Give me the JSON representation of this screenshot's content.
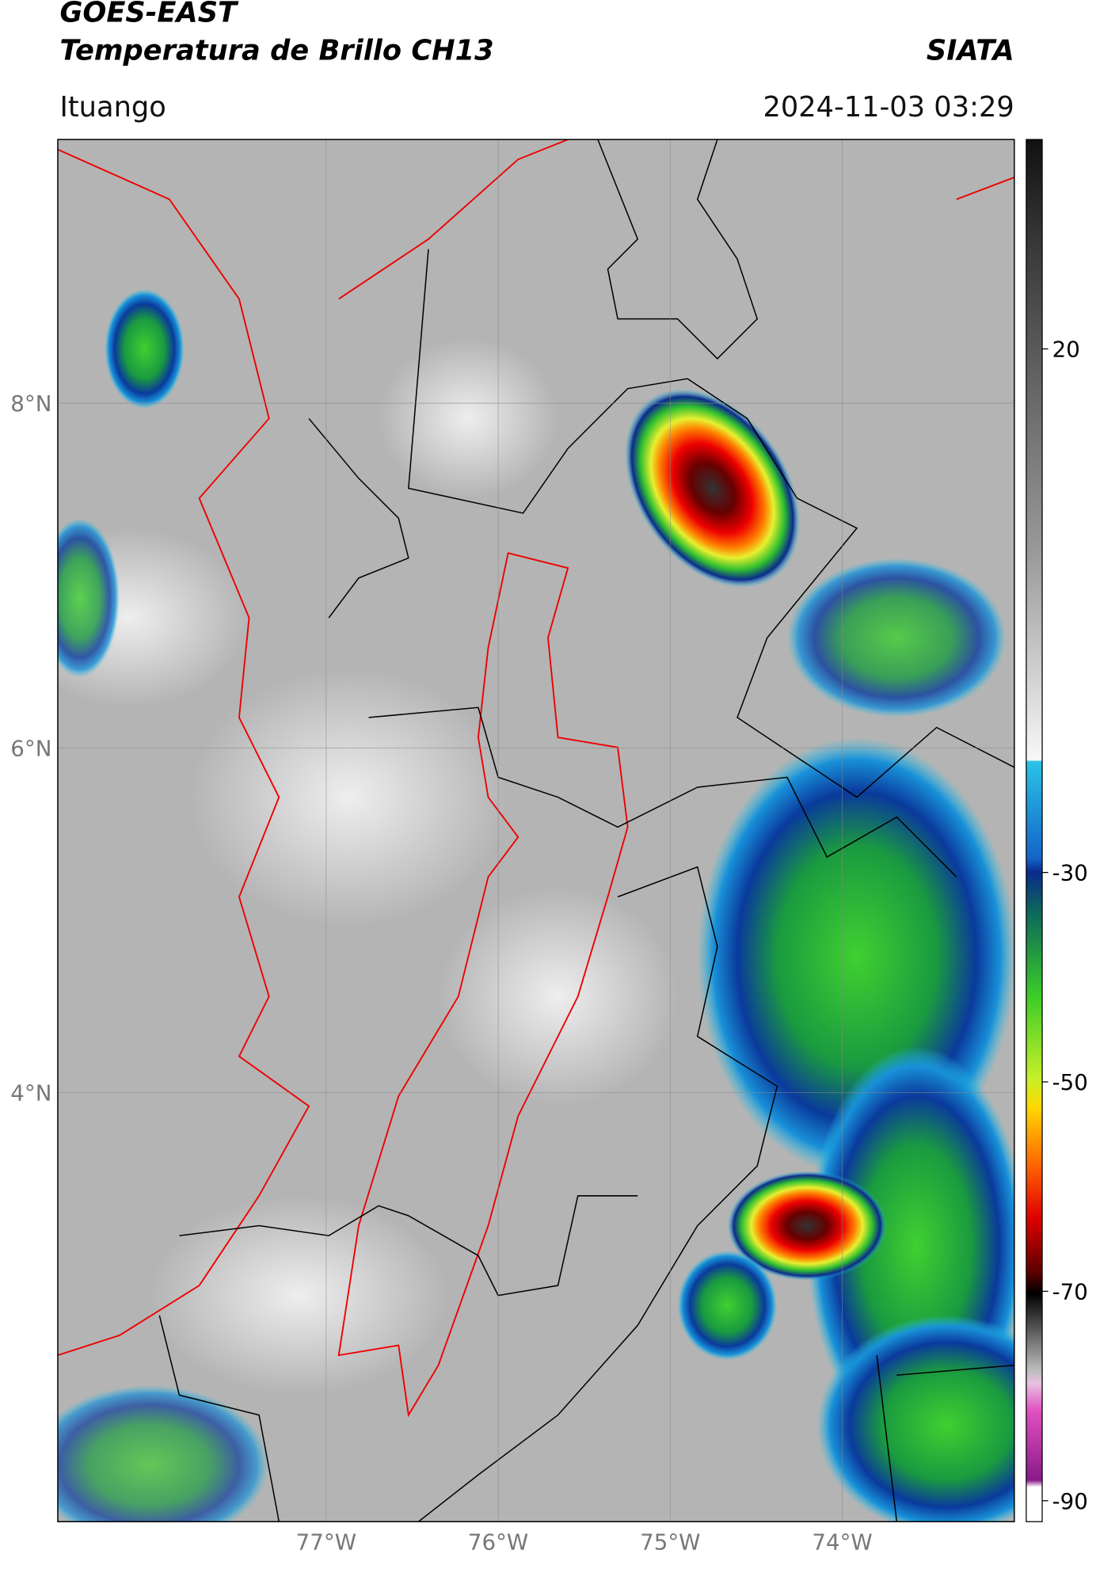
{
  "header": {
    "satellite": "GOES-EAST",
    "product": "Temperatura de Brillo CH13",
    "agency": "SIATA",
    "location": "Ituango",
    "datetime": "2024-11-03 03:29"
  },
  "map": {
    "lon_range": [
      -78.56,
      -73.0
    ],
    "lat_range": [
      1.51,
      9.53
    ],
    "lon_ticks": [
      {
        "value": -77,
        "label": "77°W"
      },
      {
        "value": -76,
        "label": "76°W"
      },
      {
        "value": -75,
        "label": "75°W"
      },
      {
        "value": -74,
        "label": "74°W"
      }
    ],
    "lat_ticks": [
      {
        "value": 8,
        "label": "8°N"
      },
      {
        "value": 6,
        "label": "6°N"
      },
      {
        "value": 4,
        "label": "4°N"
      }
    ]
  },
  "colorbar": {
    "range": [
      -92,
      40
    ],
    "ticks": [
      20,
      -30,
      -50,
      -70,
      -90
    ]
  }
}
